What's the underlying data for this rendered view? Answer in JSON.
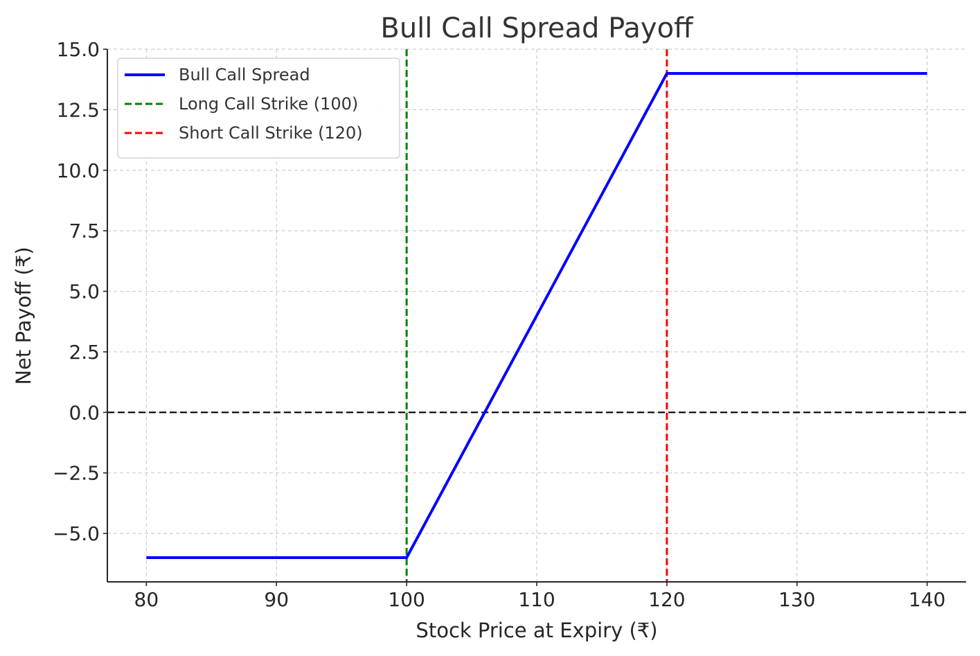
{
  "chart_data": {
    "type": "line",
    "title": "Bull Call Spread Payoff",
    "xlabel": "Stock Price at Expiry (₹)",
    "ylabel": "Net Payoff (₹)",
    "xlim": [
      77,
      143
    ],
    "ylim": [
      -7,
      15
    ],
    "x_ticks": [
      80,
      90,
      100,
      110,
      120,
      130,
      140
    ],
    "y_ticks": [
      -5,
      -2.5,
      0,
      2.5,
      5,
      7.5,
      10,
      12.5,
      15
    ],
    "x_tick_labels": [
      "80",
      "90",
      "100",
      "110",
      "120",
      "130",
      "140"
    ],
    "y_tick_labels": [
      "−5.0",
      "−2.5",
      "0.0",
      "2.5",
      "5.0",
      "7.5",
      "10.0",
      "12.5",
      "15.0"
    ],
    "grid": true,
    "legend_position": "top-left",
    "series": [
      {
        "name": "Bull Call Spread",
        "color": "#0000ff",
        "style": "solid",
        "x": [
          80,
          100,
          120,
          140
        ],
        "y": [
          -6,
          -6,
          14,
          14
        ]
      }
    ],
    "reference_lines": [
      {
        "name": "Long Call Strike (100)",
        "orientation": "vertical",
        "value": 100,
        "color": "#008000",
        "style": "dashed"
      },
      {
        "name": "Short Call Strike (120)",
        "orientation": "vertical",
        "value": 120,
        "color": "#ff0000",
        "style": "dashed"
      },
      {
        "orientation": "horizontal",
        "value": 0,
        "color": "#000000",
        "style": "dashed"
      }
    ]
  }
}
